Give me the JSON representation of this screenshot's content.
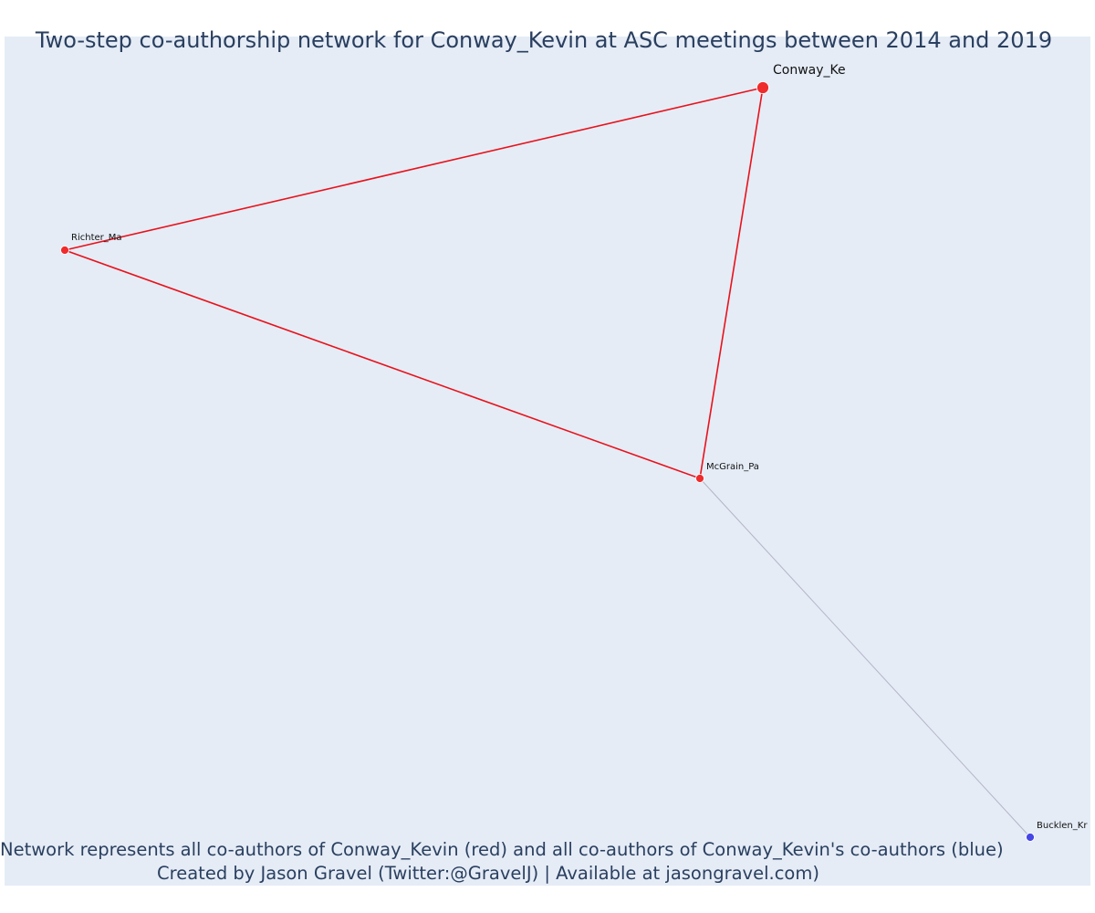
{
  "title": "Two-step co-authorship network for Conway_Kevin at ASC meetings between 2014 and 2019",
  "caption": {
    "line1": "Network represents all co-authors of Conway_Kevin (red) and all co-authors of Conway_Kevin's co-authors (blue)",
    "line2": "Created by Jason Gravel (Twitter:@GravelJ) | Available at jasongravel.com)"
  },
  "colors": {
    "background": "#e5ecf6",
    "direct_node": "#ef2b2b",
    "second_step_node": "#4646e6",
    "direct_edge": "#e8121b",
    "second_step_edge": "#b4b4c8",
    "text": "#2a3f5f"
  },
  "network": {
    "nodes": [
      {
        "id": "Conway_Ke",
        "label": "Conway_Ke",
        "group": "focal"
      },
      {
        "id": "Richter_Ma",
        "label": "Richter_Ma",
        "group": "coauthor"
      },
      {
        "id": "McGrain_Pa",
        "label": "McGrain_Pa",
        "group": "coauthor"
      },
      {
        "id": "Bucklen_Kr",
        "label": "Bucklen_Kr",
        "group": "second_step"
      }
    ],
    "edges": [
      {
        "source": "Conway_Ke",
        "target": "Richter_Ma",
        "type": "direct"
      },
      {
        "source": "Conway_Ke",
        "target": "McGrain_Pa",
        "type": "direct"
      },
      {
        "source": "Richter_Ma",
        "target": "McGrain_Pa",
        "type": "direct"
      },
      {
        "source": "McGrain_Pa",
        "target": "Bucklen_Kr",
        "type": "second_step"
      }
    ]
  }
}
